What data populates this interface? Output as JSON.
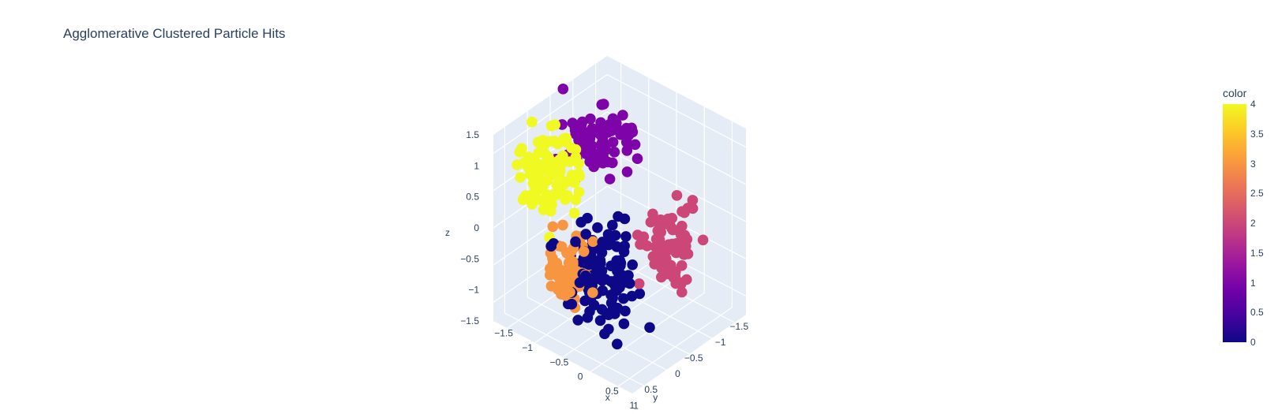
{
  "chart_data": {
    "type": "scatter3d",
    "title": "Agglomerative Clustered Particle Hits",
    "axes": {
      "x": {
        "label": "x",
        "ticks": [
          "−1.5",
          "−1",
          "−0.5",
          "0",
          "0.5",
          "1"
        ],
        "range": [
          -1.5,
          1
        ]
      },
      "y": {
        "label": "y",
        "ticks": [
          "−1.5",
          "−1",
          "−0.5",
          "0",
          "0.5",
          "1"
        ],
        "range": [
          -1.5,
          1
        ]
      },
      "z": {
        "label": "z",
        "ticks": [
          "−1.5",
          "−1",
          "−0.5",
          "0",
          "0.5",
          "1",
          "1.5"
        ],
        "range": [
          -1.5,
          1.5
        ]
      }
    },
    "colorbar": {
      "title": "color",
      "ticks": [
        "0",
        "0.5",
        "1",
        "1.5",
        "2",
        "2.5",
        "3",
        "3.5",
        "4"
      ],
      "range": [
        0,
        4
      ],
      "colorscale": [
        "#0d0887",
        "#46039f",
        "#7201a8",
        "#9c179e",
        "#bd3786",
        "#d8576b",
        "#ed7953",
        "#fb9f3a",
        "#fdca26",
        "#f0f921"
      ]
    },
    "clusters": [
      {
        "label": 0,
        "color": "#0d0887"
      },
      {
        "label": 1,
        "color": "#7e03a8"
      },
      {
        "label": 2,
        "color": "#cc4778"
      },
      {
        "label": 3,
        "color": "#f89540"
      },
      {
        "label": 4,
        "color": "#f0f921"
      }
    ],
    "grid": true
  }
}
